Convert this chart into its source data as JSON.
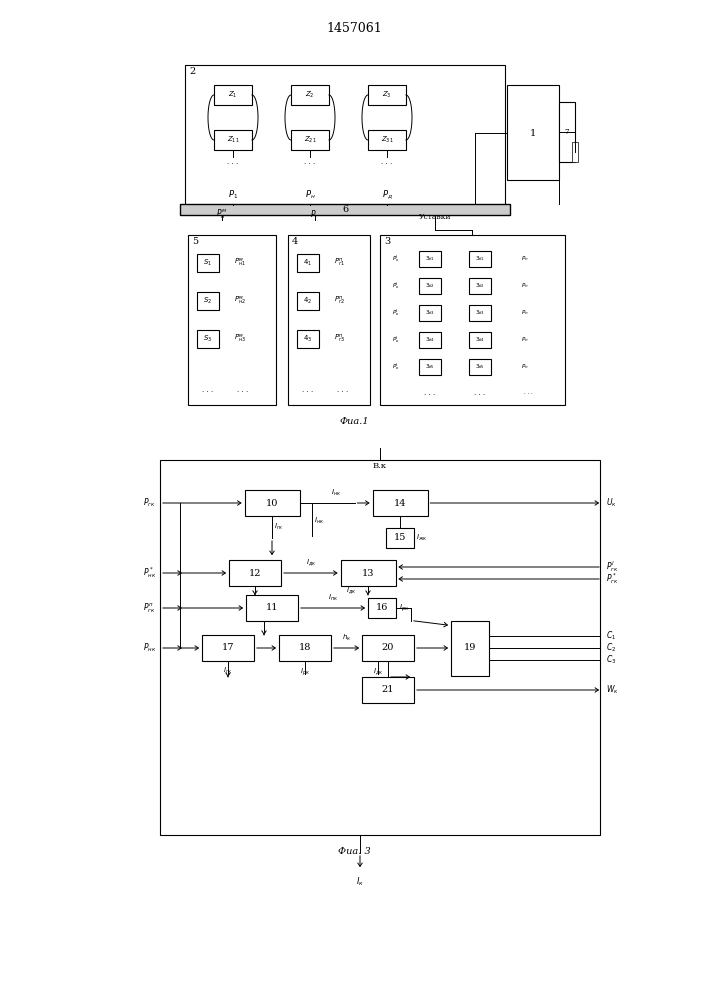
{
  "title": "1457061",
  "bg_color": "#ffffff",
  "fig1_caption": "Фиа.1",
  "fig3_caption": "Фиа. 3"
}
